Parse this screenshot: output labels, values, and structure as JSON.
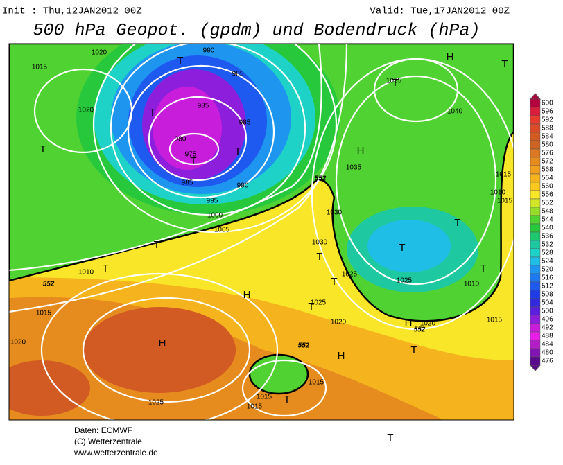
{
  "header": {
    "init": "Init : Thu,12JAN2012 00Z",
    "valid": "Valid: Tue,17JAN2012 00Z",
    "title": "500 hPa Geopot. (gpdm) und Bodendruck (hPa)"
  },
  "colorbar": {
    "ticks": [
      600,
      596,
      592,
      588,
      584,
      580,
      576,
      572,
      568,
      564,
      560,
      556,
      552,
      548,
      544,
      540,
      536,
      532,
      528,
      524,
      520,
      516,
      512,
      508,
      504,
      500,
      496,
      492,
      488,
      484,
      480,
      476
    ],
    "colors": [
      "#b4003c",
      "#d81e3c",
      "#e63c2d",
      "#dc4b28",
      "#d25a23",
      "#cd6423",
      "#dc7823",
      "#e68c1e",
      "#f0a01e",
      "#f5b41e",
      "#fac81e",
      "#fae628",
      "#d2e628",
      "#96dc28",
      "#50d232",
      "#28c83c",
      "#1ec86e",
      "#1ec8a0",
      "#1ed2c8",
      "#1ebee6",
      "#1e96f0",
      "#1e78f0",
      "#1e5af0",
      "#1e3ce6",
      "#3228dc",
      "#5a1edc",
      "#8c1edc",
      "#c81edc",
      "#e61ee6",
      "#b41ec8",
      "#8214b4",
      "#5a0a8c"
    ]
  },
  "isobar_labels": [
    1020,
    1015,
    1020,
    990,
    985,
    985,
    985,
    980,
    975,
    985,
    990,
    995,
    1000,
    1005,
    1010,
    1015,
    1020,
    1025,
    1035,
    1040,
    1035,
    1030,
    1030,
    1025,
    1025,
    1025,
    1020,
    1020,
    1015,
    1010,
    1010,
    1015,
    1015,
    1015,
    1015,
    1015
  ],
  "contour_labels": [
    552,
    552,
    552,
    552
  ],
  "pressure_centers": [
    "T",
    "T",
    "T",
    "T",
    "T",
    "T",
    "T",
    "H",
    "T",
    "T",
    "H",
    "T",
    "T",
    "T",
    "T",
    "T",
    "T",
    "H",
    "H",
    "H",
    "H",
    "T",
    "T",
    "T"
  ],
  "footer": {
    "source": "Daten: ECMWF",
    "copyright": "(C) Wetterzentrale",
    "url": "www.wetterzentrale.de"
  }
}
